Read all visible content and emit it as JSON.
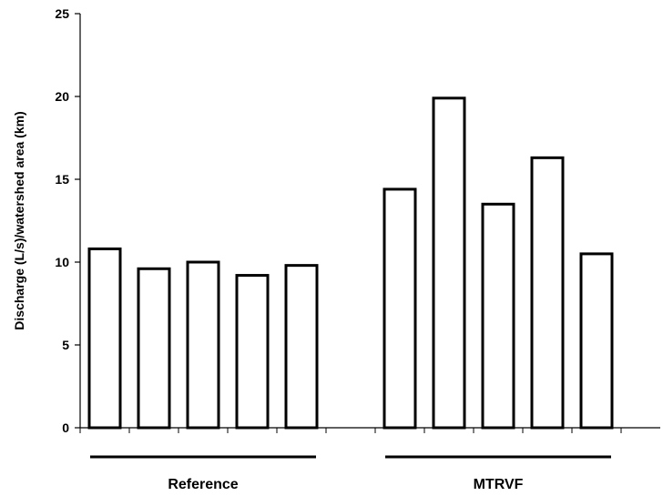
{
  "chart_data": {
    "type": "bar",
    "title": "",
    "xlabel": "",
    "ylabel": "Discharge (L/s)/watershed area (km)",
    "ylim": [
      0,
      25
    ],
    "yticks": [
      0,
      5,
      10,
      15,
      20,
      25
    ],
    "grid": false,
    "legend": "none",
    "bar_fill": "#ffffff",
    "bar_stroke": "#000000",
    "groups": [
      {
        "label": "Reference",
        "values": [
          10.8,
          9.6,
          10.0,
          9.2,
          9.8
        ]
      },
      {
        "label": "MTRVF",
        "values": [
          14.4,
          19.9,
          13.5,
          16.3,
          10.5
        ]
      }
    ]
  }
}
